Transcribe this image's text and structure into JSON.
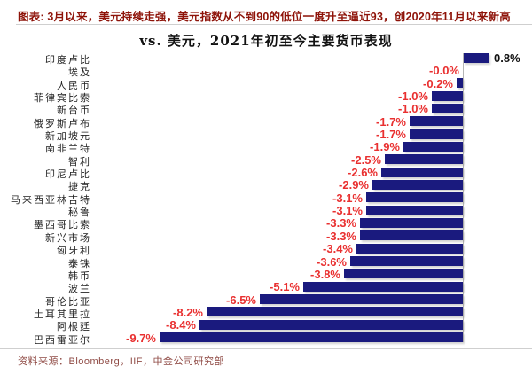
{
  "header": {
    "title": "图表: 3月以来，美元持续走强，美元指数从不到90的低位一度升至逼近93，创2020年11月以来新高"
  },
  "chart_data": {
    "type": "bar",
    "orientation": "horizontal",
    "title": "vs. 美元，2021年初至今主要货币表现",
    "unit": "%",
    "xlim": [
      -10.5,
      2.2
    ],
    "grid": "off",
    "legend": "none",
    "bar_color": "#1a1a7e",
    "negative_label_color": "#e93030",
    "positive_label_color": "#111111",
    "categories": [
      "印度卢比",
      "埃及",
      "人民币",
      "菲律宾比索",
      "新台币",
      "俄罗斯卢布",
      "新加坡元",
      "南非兰特",
      "智利",
      "印尼卢比",
      "捷克",
      "马来西亚林吉特",
      "秘鲁",
      "墨西哥比索",
      "新兴市场",
      "匈牙利",
      "泰铢",
      "韩币",
      "波兰",
      "哥伦比亚",
      "土耳其里拉",
      "阿根廷",
      "巴西雷亚尔"
    ],
    "values": [
      0.8,
      -0.0,
      -0.2,
      -1.0,
      -1.0,
      -1.7,
      -1.7,
      -1.9,
      -2.5,
      -2.6,
      -2.9,
      -3.1,
      -3.1,
      -3.3,
      -3.3,
      -3.4,
      -3.6,
      -3.8,
      -5.1,
      -6.5,
      -8.2,
      -8.4,
      -9.7
    ],
    "value_labels": [
      "0.8%",
      "-0.0%",
      "-0.2%",
      "-1.0%",
      "-1.0%",
      "-1.7%",
      "-1.7%",
      "-1.9%",
      "-2.5%",
      "-2.6%",
      "-2.9%",
      "-3.1%",
      "-3.1%",
      "-3.3%",
      "-3.3%",
      "-3.4%",
      "-3.6%",
      "-3.8%",
      "-5.1%",
      "-6.5%",
      "-8.2%",
      "-8.4%",
      "-9.7%"
    ]
  },
  "footer": {
    "source": "资料来源：Bloomberg，IIF，中金公司研究部"
  }
}
